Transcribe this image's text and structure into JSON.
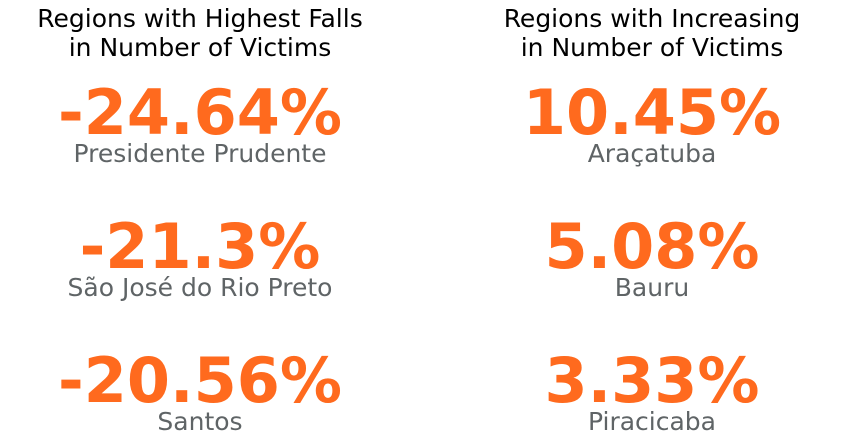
{
  "colors": {
    "value": "#ff6a1e",
    "region": "#5f6466",
    "title": "#000000"
  },
  "chart_data": {
    "type": "table",
    "panels": [
      {
        "title_line1": "Regions with Highest Falls",
        "title_line2": "in Number of Victims",
        "entries": [
          {
            "value": "-24.64%",
            "region": "Presidente Prudente"
          },
          {
            "value": "-21.3%",
            "region": "São José do Rio Preto"
          },
          {
            "value": "-20.56%",
            "region": "Santos"
          }
        ]
      },
      {
        "title_line1": "Regions with Increasing",
        "title_line2": "in Number of Victims",
        "entries": [
          {
            "value": "10.45%",
            "region": "Araçatuba"
          },
          {
            "value": "5.08%",
            "region": "Bauru"
          },
          {
            "value": "3.33%",
            "region": "Piracicaba"
          }
        ]
      }
    ]
  }
}
